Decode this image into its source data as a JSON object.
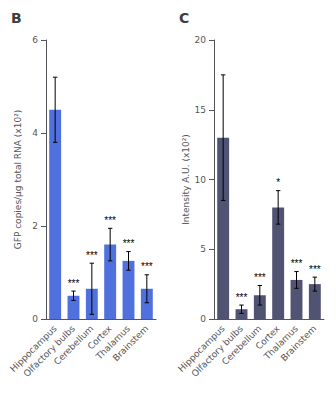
{
  "chart_data": [
    {
      "type": "bar",
      "title": "B",
      "categories": [
        "Hippocampus",
        "Olfactory bulbs",
        "Cerebellum",
        "Cortex",
        "Thalamus",
        "Brainstem"
      ],
      "values": [
        4.5,
        0.5,
        0.65,
        1.6,
        1.25,
        0.65
      ],
      "errors": [
        0.7,
        0.1,
        0.55,
        0.35,
        0.2,
        0.3
      ],
      "annotations": [
        null,
        "***",
        "***",
        "***",
        "***",
        "***"
      ],
      "ylabel": "GFP copies/μg total RNA (x10²)",
      "ylim": [
        0,
        6
      ],
      "yticks": [
        0,
        2,
        4,
        6
      ],
      "grid": false
    },
    {
      "type": "bar",
      "title": "C",
      "categories": [
        "Hippocampus",
        "Olfactory bulbs",
        "Cerebellum",
        "Cortex",
        "Thalamus",
        "Brainstem"
      ],
      "values": [
        13.0,
        0.7,
        1.7,
        8.0,
        2.8,
        2.5
      ],
      "errors": [
        4.5,
        0.3,
        0.7,
        1.2,
        0.6,
        0.5
      ],
      "annotations": [
        null,
        "***",
        "***",
        "*",
        "***",
        "***"
      ],
      "ylabel": "Intensity A.U. (x10²)",
      "ylim": [
        0,
        20
      ],
      "yticks": [
        0,
        5,
        10,
        15,
        20
      ],
      "grid": false
    }
  ]
}
